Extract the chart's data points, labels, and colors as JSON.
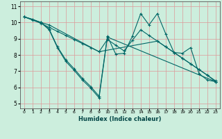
{
  "xlabel": "Humidex (Indice chaleur)",
  "bg_color": "#cceedd",
  "grid_color": "#dd9999",
  "line_color": "#006666",
  "xlim": [
    -0.5,
    23.5
  ],
  "ylim": [
    4.7,
    11.3
  ],
  "xticks": [
    0,
    1,
    2,
    3,
    4,
    5,
    6,
    7,
    8,
    9,
    10,
    11,
    12,
    13,
    14,
    15,
    16,
    17,
    18,
    19,
    20,
    21,
    22,
    23
  ],
  "yticks": [
    5,
    6,
    7,
    8,
    9,
    10,
    11
  ],
  "lines": [
    {
      "x": [
        0,
        1,
        2,
        3,
        4,
        5,
        6,
        7,
        8,
        9,
        10,
        11,
        12,
        13,
        14,
        15,
        16,
        17,
        18,
        19,
        20,
        21,
        22,
        23
      ],
      "y": [
        10.35,
        10.2,
        10.0,
        9.6,
        8.5,
        7.7,
        7.15,
        6.55,
        6.05,
        5.45,
        9.15,
        8.05,
        8.1,
        9.15,
        10.55,
        9.85,
        10.55,
        9.3,
        8.15,
        8.1,
        8.45,
        6.85,
        6.45,
        6.35
      ]
    },
    {
      "x": [
        0,
        1,
        2,
        3,
        4,
        5,
        6,
        7,
        8,
        9,
        10,
        11,
        12,
        13,
        14,
        15,
        16,
        17,
        18,
        19,
        20,
        21,
        22,
        23
      ],
      "y": [
        10.35,
        10.15,
        9.95,
        9.7,
        9.45,
        9.2,
        8.95,
        8.7,
        8.45,
        8.2,
        8.95,
        8.6,
        8.25,
        8.9,
        9.55,
        9.2,
        8.85,
        8.5,
        8.15,
        7.8,
        7.45,
        7.1,
        6.75,
        6.4
      ]
    },
    {
      "x": [
        0,
        2,
        3,
        4,
        5,
        6,
        7,
        8,
        9,
        10,
        23
      ],
      "y": [
        10.35,
        10.0,
        9.55,
        8.45,
        7.6,
        7.05,
        6.45,
        5.95,
        5.35,
        9.1,
        6.35
      ]
    },
    {
      "x": [
        0,
        2,
        3,
        9,
        16,
        17,
        18,
        19,
        20,
        21,
        22,
        23
      ],
      "y": [
        10.35,
        10.0,
        9.85,
        8.2,
        8.85,
        8.5,
        8.15,
        7.8,
        7.45,
        7.1,
        6.75,
        6.35
      ]
    }
  ]
}
